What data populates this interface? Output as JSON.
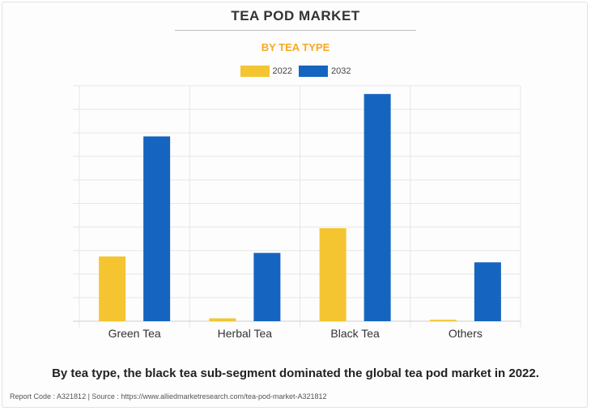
{
  "title": "TEA POD MARKET",
  "subtitle": "BY TEA TYPE",
  "caption": "By tea type, the black tea sub-segment dominated the global tea pod market in 2022.",
  "source": "Report Code : A321812  |  Source : https://www.alliedmarketresearch.com/tea-pod-market-A321812",
  "colors": {
    "2022": "#f4c531",
    "2032": "#1565c0",
    "subtitle": "#f7a823"
  },
  "chart_data": {
    "type": "bar",
    "title": "TEA POD MARKET",
    "subtitle": "BY TEA TYPE",
    "categories": [
      "Green Tea",
      "Herbal Tea",
      "Black Tea",
      "Others"
    ],
    "series": [
      {
        "name": "2022",
        "values": [
          27.5,
          1.2,
          39.5,
          0.6
        ]
      },
      {
        "name": "2032",
        "values": [
          78.5,
          29.0,
          96.5,
          25.0
        ]
      }
    ],
    "ylim": [
      0,
      100
    ],
    "yticks": 10,
    "xlabel": "",
    "ylabel": "",
    "grid": true,
    "legend": "top-center"
  }
}
